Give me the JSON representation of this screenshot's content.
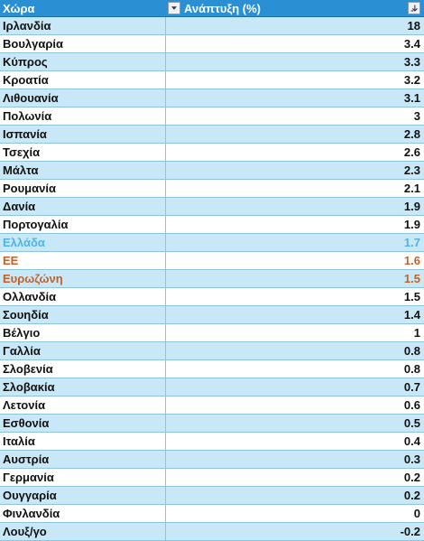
{
  "table": {
    "header": [
      "Χώρα",
      "Ανάπτυξη (%)"
    ],
    "rows": [
      {
        "country": "Ιρλανδία",
        "value": 18
      },
      {
        "country": "Βουλγαρία",
        "value": 3.4
      },
      {
        "country": "Κύπρος",
        "value": 3.3
      },
      {
        "country": "Κροατία",
        "value": 3.2
      },
      {
        "country": "Λιθουανία",
        "value": 3.1
      },
      {
        "country": "Πολωνία",
        "value": 3
      },
      {
        "country": "Ισπανία",
        "value": 2.8
      },
      {
        "country": "Τσεχία",
        "value": 2.6
      },
      {
        "country": "Μάλτα",
        "value": 2.3
      },
      {
        "country": "Ρουμανία",
        "value": 2.1
      },
      {
        "country": "Δανία",
        "value": 1.9
      },
      {
        "country": "Πορτογαλία",
        "value": 1.9
      },
      {
        "country": "Ελλάδα",
        "value": 1.7,
        "color": "#4fb4e4"
      },
      {
        "country": "ΕΕ",
        "value": 1.6,
        "color": "#c0622a"
      },
      {
        "country": "Ευρωζώνη",
        "value": 1.5,
        "color": "#c0622a"
      },
      {
        "country": "Ολλανδία",
        "value": 1.5
      },
      {
        "country": "Σουηδία",
        "value": 1.4
      },
      {
        "country": "Βέλγιο",
        "value": 1
      },
      {
        "country": "Γαλλία",
        "value": 0.8
      },
      {
        "country": "Σλοβενία",
        "value": 0.8
      },
      {
        "country": "Σλοβακία",
        "value": 0.7
      },
      {
        "country": "Λετονία",
        "value": 0.6
      },
      {
        "country": "Εσθονία",
        "value": 0.5
      },
      {
        "country": "Ιταλία",
        "value": 0.4
      },
      {
        "country": "Αυστρία",
        "value": 0.3
      },
      {
        "country": "Γερμανία",
        "value": 0.2
      },
      {
        "country": "Ουγγαρία",
        "value": 0.2
      },
      {
        "country": "Φινλανδία",
        "value": 0
      },
      {
        "country": "Λουξ/γο",
        "value": -0.2
      }
    ]
  }
}
